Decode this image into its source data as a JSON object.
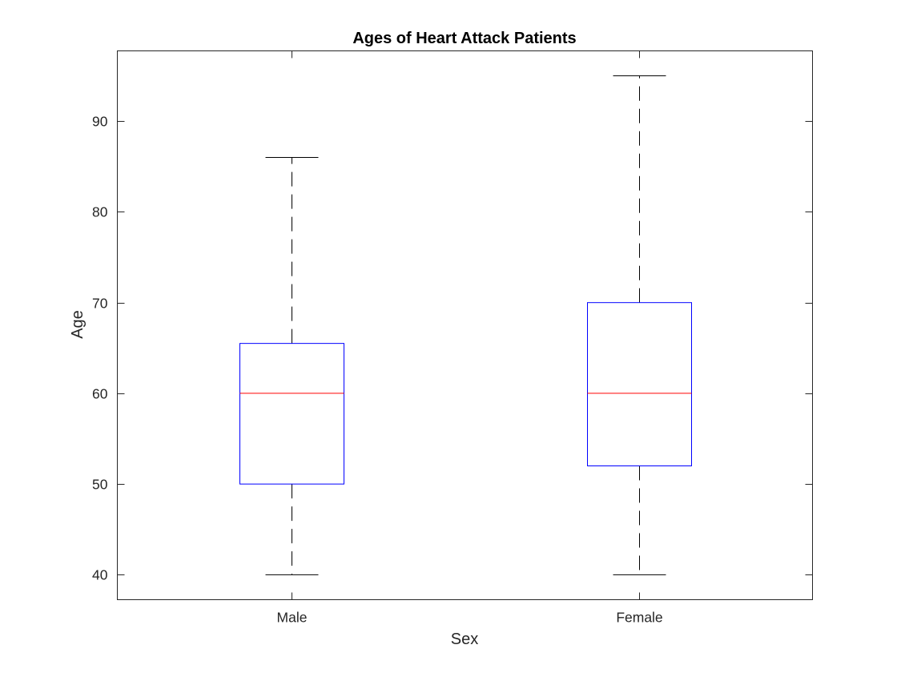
{
  "chart_data": {
    "type": "box",
    "title": "Ages of Heart Attack Patients",
    "xlabel": "Sex",
    "ylabel": "Age",
    "categories": [
      "Male",
      "Female"
    ],
    "boxes": [
      {
        "category": "Male",
        "min": 40,
        "q1": 50,
        "median": 60,
        "q3": 65.5,
        "max": 86
      },
      {
        "category": "Female",
        "min": 40,
        "q1": 52,
        "median": 60,
        "q3": 70,
        "max": 95
      }
    ],
    "ylim": [
      37.25,
      97.75
    ],
    "yticks": [
      40,
      50,
      60,
      70,
      80,
      90
    ],
    "grid": false,
    "colors": {
      "box": "#0000ff",
      "median": "#ff0000",
      "whisker": "#000000",
      "axis": "#262626"
    }
  }
}
